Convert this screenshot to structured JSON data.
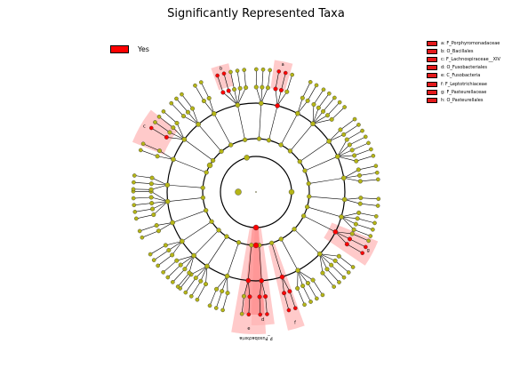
{
  "title": "Significantly Represented Taxa",
  "legend_yes": {
    "label": "Yes",
    "color": "#ff0000"
  },
  "legend_taxa": [
    "a: F_Porphyromonadaceae",
    "b: O_Bacillales",
    "c: F_Lachnospiraceae__XIV",
    "d: O_Fusobacteriales",
    "e: C_Fusobacteria",
    "f: F_Leptotrichiaceae",
    "g: F_Pasteurellaceae",
    "h: O_Pasteurellales"
  ],
  "highlights": [
    {
      "label": "a",
      "angle_deg": 12
    },
    {
      "label": "b",
      "angle_deg": -16
    },
    {
      "label": "c",
      "angle_deg": -60
    },
    {
      "label": "g",
      "angle_deg": 118
    },
    {
      "label": "d",
      "angle_deg": 177
    },
    {
      "label": "e",
      "angle_deg": 183
    },
    {
      "label": "f",
      "angle_deg": 162
    }
  ],
  "phylum_label": "P_Fusobacteria",
  "colors": {
    "node": "#b5b517",
    "enriched": "#ff0000",
    "highlight": "#ffb3b3",
    "highlight_dark": "#ff7373"
  }
}
